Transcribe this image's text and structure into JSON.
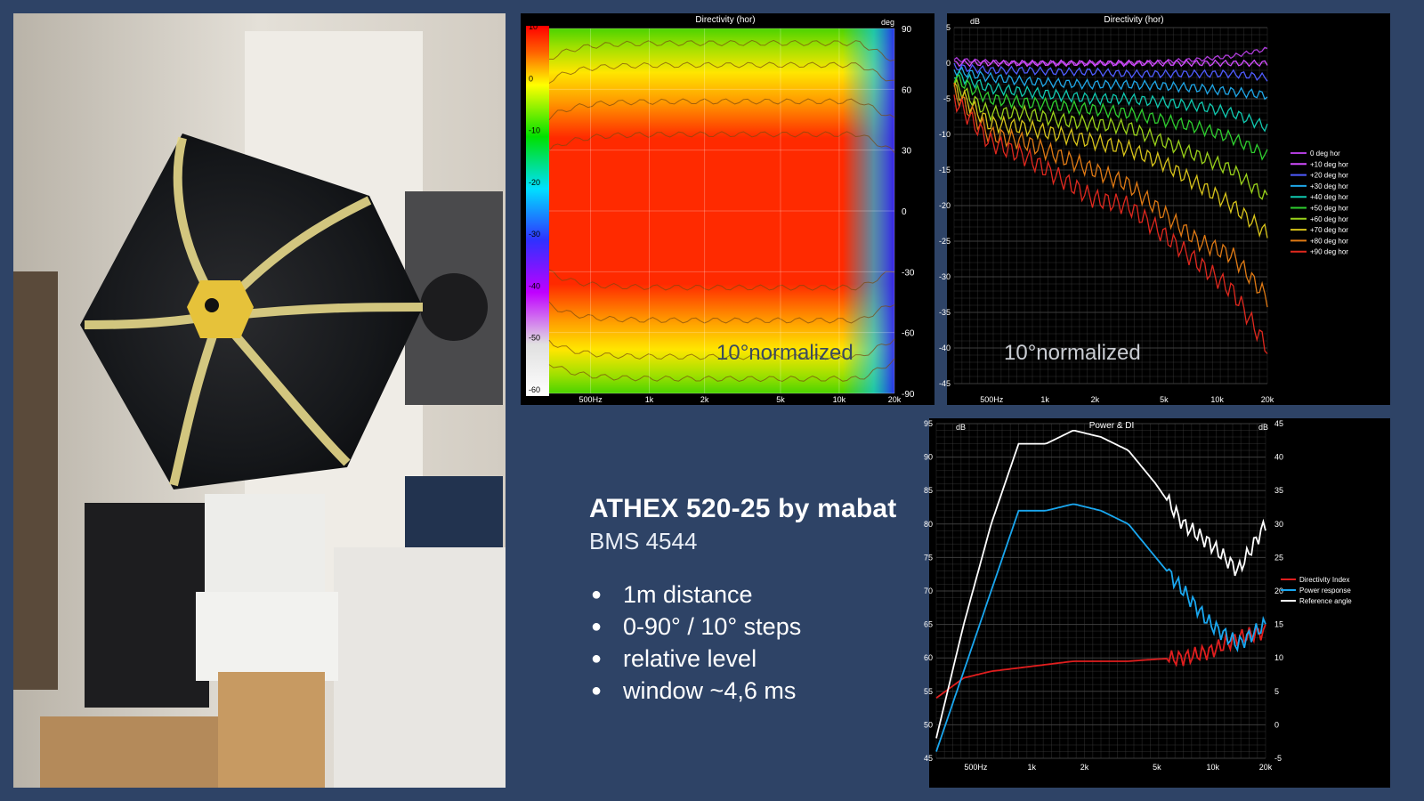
{
  "info": {
    "title": "ATHEX 520-25 by mabat",
    "subtitle": "BMS 4544",
    "bullets": [
      "1m distance",
      "0-90° / 10° steps",
      "relative level",
      "window ~4,6 ms"
    ]
  },
  "chart_data": [
    {
      "type": "heatmap",
      "title": "Directivity (hor)",
      "y_unit": "deg",
      "annotation": "10°normalized",
      "x_ticks": [
        "500Hz",
        "1k",
        "2k",
        "5k",
        "10k",
        "20k"
      ],
      "y_ticks": [
        "90",
        "60",
        "30",
        "0",
        "-30",
        "-60",
        "-90"
      ],
      "scale_ticks": [
        "10",
        "0",
        "-10",
        "-20",
        "-30",
        "-40",
        "-50",
        "-60"
      ],
      "ylim": [
        -90,
        90
      ],
      "scale_range": [
        -60,
        10
      ]
    },
    {
      "type": "line",
      "title": "Directivity (hor)",
      "y_unit": "dB",
      "annotation": "10°normalized",
      "x_ticks": [
        "500Hz",
        "1k",
        "2k",
        "5k",
        "10k",
        "20k"
      ],
      "y_ticks": [
        "5",
        "0",
        "-5",
        "-10",
        "-15",
        "-20",
        "-25",
        "-30",
        "-35",
        "-40",
        "-45"
      ],
      "ylim": [
        -45,
        5
      ],
      "legend_position": "right",
      "series": [
        {
          "name": "0 deg hor",
          "color": "#b03cdc",
          "values": [
            0.5,
            0.2,
            0,
            0,
            0,
            0,
            0.2,
            0.5,
            1,
            2
          ]
        },
        {
          "name": "+10 deg hor",
          "color": "#d24cff",
          "values": [
            0,
            0,
            0,
            0,
            0,
            0,
            0,
            0,
            0,
            0
          ]
        },
        {
          "name": "+20 deg hor",
          "color": "#4f5cff",
          "values": [
            -0.5,
            -1,
            -1,
            -1.2,
            -1.2,
            -1.5,
            -1.5,
            -1.5,
            -1.5,
            -2
          ]
        },
        {
          "name": "+30 deg hor",
          "color": "#1fa7e8",
          "values": [
            -1,
            -2,
            -2.5,
            -2.8,
            -3,
            -3,
            -3.2,
            -3.5,
            -4,
            -4.5
          ]
        },
        {
          "name": "+40 deg hor",
          "color": "#10c9b0",
          "values": [
            -1.5,
            -3.5,
            -4,
            -4.5,
            -5,
            -5,
            -5.5,
            -6,
            -7,
            -9
          ]
        },
        {
          "name": "+50 deg hor",
          "color": "#2fcf2f",
          "values": [
            -2,
            -5,
            -5.5,
            -6,
            -6.5,
            -7,
            -8,
            -9,
            -10.5,
            -13
          ]
        },
        {
          "name": "+60 deg hor",
          "color": "#9ad21a",
          "values": [
            -3,
            -7,
            -7,
            -8,
            -8.5,
            -9,
            -11,
            -13,
            -15,
            -19
          ]
        },
        {
          "name": "+70 deg hor",
          "color": "#d8c41a",
          "values": [
            -3.5,
            -8.5,
            -9,
            -10,
            -11,
            -12,
            -14,
            -17,
            -20,
            -24
          ]
        },
        {
          "name": "+80 deg hor",
          "color": "#e07a14",
          "values": [
            -4,
            -10,
            -11,
            -13,
            -15,
            -17,
            -21,
            -25,
            -27,
            -33
          ]
        },
        {
          "name": "+90 deg hor",
          "color": "#e0281e",
          "values": [
            -5,
            -11,
            -13,
            -16,
            -19,
            -20,
            -24,
            -28,
            -32,
            -40
          ]
        }
      ]
    },
    {
      "type": "line",
      "title": "Power & DI",
      "y_unit_left": "dB",
      "y_unit_right": "dB",
      "x_ticks": [
        "500Hz",
        "1k",
        "2k",
        "5k",
        "10k",
        "20k"
      ],
      "y_ticks_left": [
        "95",
        "90",
        "85",
        "80",
        "75",
        "70",
        "65",
        "60",
        "55",
        "50",
        "45"
      ],
      "y_ticks_right": [
        "45",
        "40",
        "35",
        "30",
        "25",
        "20",
        "15",
        "10",
        "5",
        "0",
        "-5"
      ],
      "ylim_left": [
        45,
        95
      ],
      "ylim_right": [
        -5,
        45
      ],
      "legend_position": "right",
      "series": [
        {
          "name": "Directivity Index",
          "color": "#e01e1e",
          "axis": "right",
          "values": [
            4,
            7,
            8,
            8.5,
            9,
            9.5,
            9.5,
            9.5,
            9.8,
            10,
            11,
            13,
            14
          ]
        },
        {
          "name": "Power response",
          "color": "#1aa7ef",
          "axis": "left",
          "values": [
            46,
            58,
            70,
            82,
            82,
            83,
            82,
            80,
            75,
            70,
            65,
            62,
            65
          ]
        },
        {
          "name": "Reference angle",
          "color": "#ffffff",
          "axis": "left",
          "values": [
            48,
            65,
            80,
            92,
            92,
            94,
            93,
            91,
            86,
            80,
            77,
            73,
            80
          ]
        }
      ]
    }
  ]
}
